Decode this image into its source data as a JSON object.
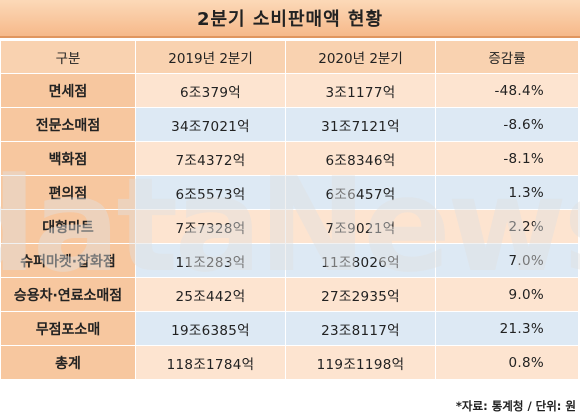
{
  "title": "2분기 소비판매액 현황",
  "watermark_text": "dataNews",
  "headers": [
    "구분",
    "2019년 2분기",
    "2020년 2분기",
    "증감률"
  ],
  "rows": [
    {
      "label": "면세점",
      "y2019": "6조379억",
      "y2020": "3조1177억",
      "rate": "-48.4%"
    },
    {
      "label": "전문소매점",
      "y2019": "34조7021억",
      "y2020": "31조7121억",
      "rate": "-8.6%"
    },
    {
      "label": "백화점",
      "y2019": "7조4372억",
      "y2020": "6조8346억",
      "rate": "-8.1%"
    },
    {
      "label": "편의점",
      "y2019": "6조5573억",
      "y2020": "6조6457억",
      "rate": "1.3%"
    },
    {
      "label": "대형마트",
      "y2019": "7조7328억",
      "y2020": "7조9021억",
      "rate": "2.2%"
    },
    {
      "label": "슈퍼마켓·잡화점",
      "y2019": "11조283억",
      "y2020": "11조8026억",
      "rate": "7.0%"
    },
    {
      "label": "승용차·연료소매점",
      "y2019": "25조442억",
      "y2020": "27조2935억",
      "rate": "9.0%"
    },
    {
      "label": "무점포소매",
      "y2019": "19조6385억",
      "y2020": "23조8117억",
      "rate": "21.3%"
    },
    {
      "label": "총계",
      "y2019": "118조1784억",
      "y2020": "119조1198억",
      "rate": "0.8%"
    }
  ],
  "source": "*자료: 통계청 / 단위: 원",
  "colors": {
    "title_bg": "#f6b98a",
    "label_bg": "#f7c79f",
    "row_orange": "#fde4d0",
    "row_blue": "#dde9f4",
    "watermark": "#e0e0e0"
  }
}
